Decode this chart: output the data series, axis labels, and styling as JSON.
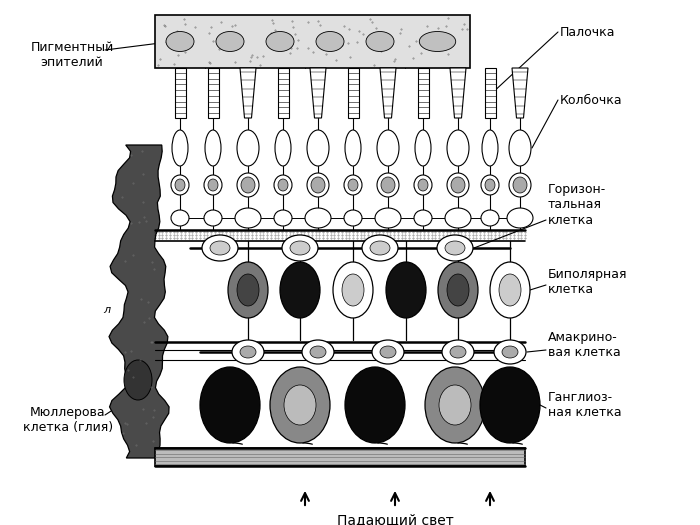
{
  "background": "#ffffff",
  "labels": {
    "pigment": "Пигментный\nэпителий",
    "rod": "Палочка",
    "cone": "Колбочка",
    "horizontal": "Горизон-\nтальная\nклетка",
    "bipolar": "Биполярная\nклетка",
    "amacrine": "Амакрино-\nвая клетка",
    "ganglion": "Ганглиоз-\nная клетка",
    "muller": "Мюллерова\nклетка (глия)",
    "light": "Падающий свет"
  },
  "fig_width": 7.0,
  "fig_height": 5.25,
  "dpi": 100
}
